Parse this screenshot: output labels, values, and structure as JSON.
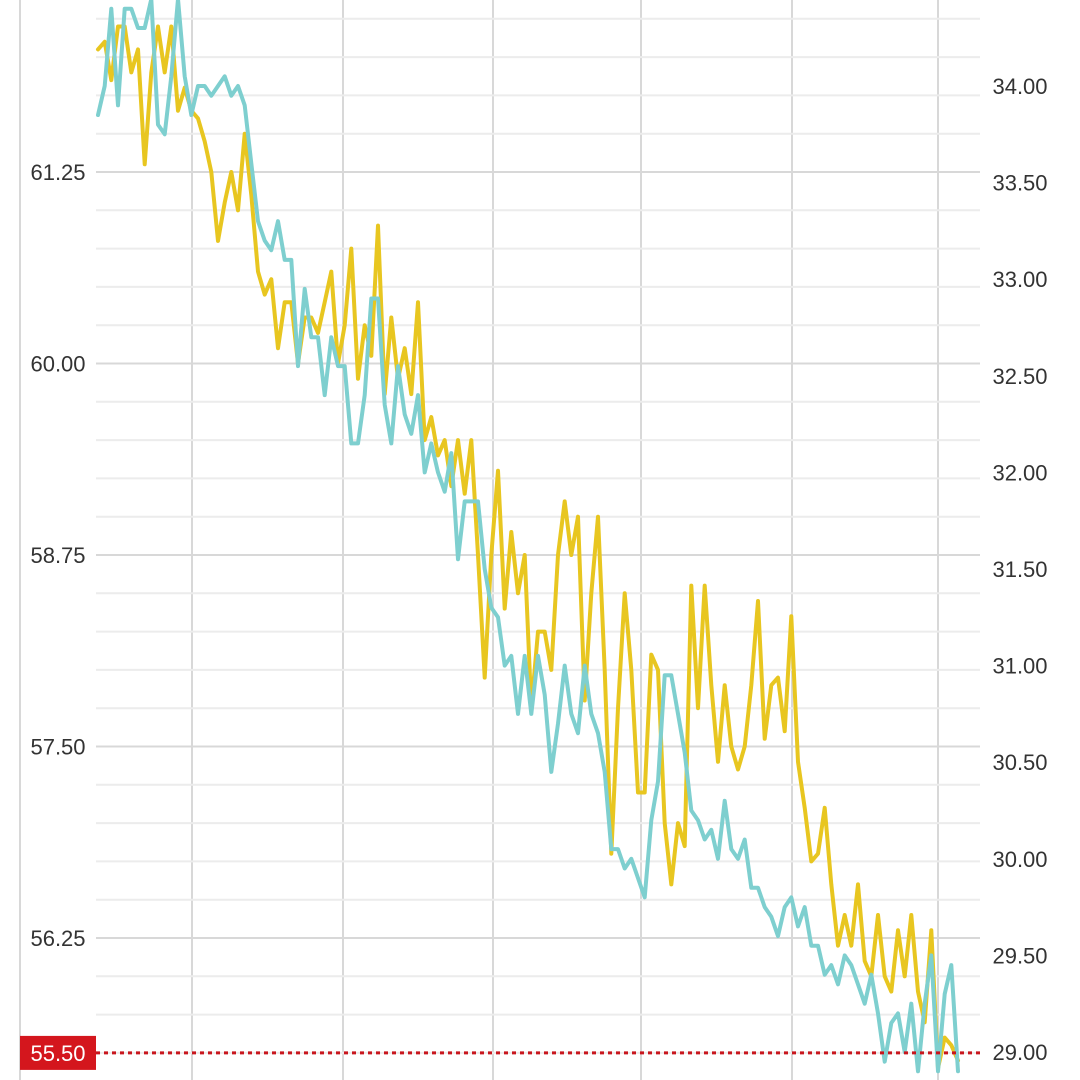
{
  "colors": {
    "background": "#ffffff",
    "grid_major": "#d8d8d8",
    "grid_minor": "#ececec",
    "series_left": "#e8c620",
    "series_right": "#7ecfcf",
    "reference_line": "#c8161d",
    "reference_label_bg": "#d4161d",
    "reference_label_text": "#ffffff"
  },
  "chart_data": {
    "type": "line",
    "title": "",
    "xlabel": "",
    "ylabel_left": "",
    "ylabel_right": "",
    "grid": true,
    "y_left": {
      "ticks": [
        "61.25",
        "60.00",
        "58.75",
        "57.50",
        "56.25"
      ],
      "tick_values": [
        61.25,
        60.0,
        58.75,
        57.5,
        56.25
      ],
      "range": [
        55.3,
        62.36
      ]
    },
    "y_right": {
      "ticks": [
        "34.00",
        "33.50",
        "33.00",
        "32.50",
        "32.00",
        "31.50",
        "31.00",
        "30.50",
        "30.00",
        "29.50",
        "29.00"
      ],
      "tick_values": [
        34.0,
        33.5,
        33.0,
        32.5,
        32.0,
        31.5,
        31.0,
        30.5,
        30.0,
        29.5,
        29.0
      ],
      "range": [
        28.86,
        34.45
      ]
    },
    "reference_line": {
      "label": "55.50",
      "value": 55.5,
      "axis": "left",
      "style": "dotted"
    },
    "series": [
      {
        "axis": "left",
        "values": [
          62.05,
          62.1,
          61.85,
          62.2,
          62.2,
          61.9,
          62.05,
          61.3,
          61.9,
          62.2,
          61.9,
          62.2,
          61.65,
          61.8,
          61.65,
          61.6,
          61.45,
          61.25,
          60.8,
          61.05,
          61.25,
          61.0,
          61.5,
          61.1,
          60.6,
          60.45,
          60.55,
          60.1,
          60.4,
          60.4,
          60.0,
          60.3,
          60.3,
          60.2,
          60.4,
          60.6,
          60.0,
          60.25,
          60.75,
          59.9,
          60.25,
          60.05,
          60.9,
          59.8,
          60.3,
          59.9,
          60.1,
          59.8,
          60.4,
          59.5,
          59.65,
          59.4,
          59.5,
          59.2,
          59.5,
          59.15,
          59.5,
          58.75,
          57.95,
          58.75,
          59.3,
          58.4,
          58.9,
          58.5,
          58.75,
          57.75,
          58.25,
          58.25,
          58.0,
          58.75,
          59.1,
          58.75,
          59.0,
          57.8,
          58.5,
          59.0,
          58.0,
          56.8,
          57.75,
          58.5,
          58.0,
          57.2,
          57.2,
          58.1,
          58.0,
          57.0,
          56.6,
          57.0,
          56.85,
          58.55,
          57.75,
          58.55,
          57.9,
          57.4,
          57.9,
          57.5,
          57.35,
          57.5,
          57.9,
          58.45,
          57.55,
          57.9,
          57.95,
          57.6,
          58.35,
          57.4,
          57.1,
          56.75,
          56.8,
          57.1,
          56.6,
          56.2,
          56.4,
          56.2,
          56.6,
          56.1,
          56.0,
          56.4,
          56.0,
          55.9,
          56.3,
          56.0,
          56.4,
          55.9,
          55.7,
          56.3,
          55.4,
          55.6,
          55.55,
          55.45
        ],
        "x_start_index": 0
      },
      {
        "axis": "right",
        "values": [
          33.85,
          34.0,
          34.4,
          33.9,
          34.4,
          34.4,
          34.3,
          34.3,
          34.45,
          33.8,
          33.75,
          34.05,
          34.45,
          34.05,
          33.85,
          34.0,
          34.0,
          33.95,
          34.0,
          34.05,
          33.95,
          34.0,
          33.9,
          33.6,
          33.3,
          33.2,
          33.15,
          33.3,
          33.1,
          33.1,
          32.55,
          32.95,
          32.7,
          32.7,
          32.4,
          32.7,
          32.55,
          32.55,
          32.15,
          32.15,
          32.4,
          32.9,
          32.9,
          32.35,
          32.15,
          32.55,
          32.3,
          32.2,
          32.4,
          32.0,
          32.15,
          32.0,
          31.9,
          32.1,
          31.55,
          31.85,
          31.85,
          31.85,
          31.5,
          31.3,
          31.25,
          31.0,
          31.05,
          30.75,
          31.05,
          30.75,
          31.05,
          30.85,
          30.45,
          30.7,
          31.0,
          30.75,
          30.65,
          31.0,
          30.75,
          30.65,
          30.45,
          30.05,
          30.05,
          29.95,
          30.0,
          29.9,
          29.8,
          30.2,
          30.4,
          30.95,
          30.95,
          30.75,
          30.55,
          30.25,
          30.2,
          30.1,
          30.15,
          30.0,
          30.3,
          30.05,
          30.0,
          30.1,
          29.85,
          29.85,
          29.75,
          29.7,
          29.6,
          29.75,
          29.8,
          29.65,
          29.75,
          29.55,
          29.55,
          29.4,
          29.45,
          29.35,
          29.5,
          29.45,
          29.35,
          29.25,
          29.4,
          29.2,
          28.95,
          29.15,
          29.2,
          29.0,
          29.25,
          28.9,
          29.25,
          29.5,
          28.9,
          29.3,
          29.45,
          28.9
        ],
        "x_start_index": 0
      }
    ]
  }
}
